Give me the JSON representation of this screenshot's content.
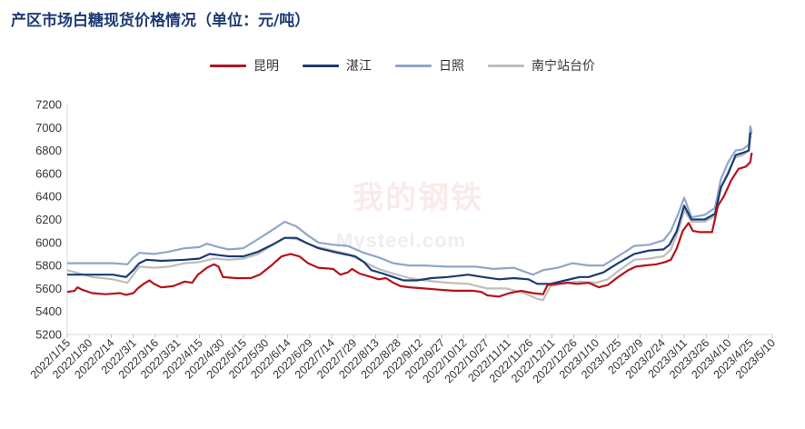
{
  "chart_data": {
    "type": "line",
    "title": "产区市场白糖现货价格情况（单位：元/吨）",
    "ylim": [
      5200,
      7200
    ],
    "yticks": [
      5200,
      5400,
      5600,
      5800,
      6000,
      6200,
      6400,
      6600,
      6800,
      7000,
      7200
    ],
    "xlim": [
      "2022-01-15",
      "2023-05-10"
    ],
    "xtick_labels": [
      "2022/1/15",
      "2022/1/30",
      "2022/2/14",
      "2022/3/1",
      "2022/3/16",
      "2022/3/31",
      "2022/4/15",
      "2022/4/30",
      "2022/5/15",
      "2022/5/30",
      "2022/6/14",
      "2022/6/29",
      "2022/7/14",
      "2022/7/29",
      "2022/8/13",
      "2022/8/28",
      "2022/9/12",
      "2022/9/27",
      "2022/10/12",
      "2022/10/27",
      "2022/11/11",
      "2022/11/26",
      "2022/12/11",
      "2022/12/26",
      "2023/1/10",
      "2023/1/25",
      "2023/2/9",
      "2023/2/24",
      "2023/3/11",
      "2023/3/26",
      "2023/4/10",
      "2023/4/25",
      "2023/5/10"
    ],
    "legend_position": "top",
    "grid": false,
    "series": [
      {
        "name": "昆明",
        "color": "#b5121b",
        "points": [
          [
            "2022-01-15",
            5570
          ],
          [
            "2022-01-20",
            5580
          ],
          [
            "2022-01-22",
            5610
          ],
          [
            "2022-01-25",
            5590
          ],
          [
            "2022-02-01",
            5560
          ],
          [
            "2022-02-10",
            5550
          ],
          [
            "2022-02-20",
            5560
          ],
          [
            "2022-02-24",
            5545
          ],
          [
            "2022-03-01",
            5560
          ],
          [
            "2022-03-04",
            5600
          ],
          [
            "2022-03-08",
            5640
          ],
          [
            "2022-03-12",
            5670
          ],
          [
            "2022-03-15",
            5640
          ],
          [
            "2022-03-20",
            5610
          ],
          [
            "2022-03-28",
            5620
          ],
          [
            "2022-04-05",
            5660
          ],
          [
            "2022-04-10",
            5650
          ],
          [
            "2022-04-14",
            5720
          ],
          [
            "2022-04-20",
            5780
          ],
          [
            "2022-04-25",
            5810
          ],
          [
            "2022-04-28",
            5790
          ],
          [
            "2022-05-01",
            5700
          ],
          [
            "2022-05-10",
            5690
          ],
          [
            "2022-05-20",
            5690
          ],
          [
            "2022-05-26",
            5720
          ],
          [
            "2022-06-03",
            5800
          ],
          [
            "2022-06-10",
            5880
          ],
          [
            "2022-06-16",
            5900
          ],
          [
            "2022-06-22",
            5880
          ],
          [
            "2022-06-28",
            5820
          ],
          [
            "2022-07-05",
            5780
          ],
          [
            "2022-07-15",
            5770
          ],
          [
            "2022-07-20",
            5720
          ],
          [
            "2022-07-25",
            5740
          ],
          [
            "2022-07-28",
            5770
          ],
          [
            "2022-08-02",
            5730
          ],
          [
            "2022-08-10",
            5700
          ],
          [
            "2022-08-15",
            5680
          ],
          [
            "2022-08-20",
            5690
          ],
          [
            "2022-08-25",
            5650
          ],
          [
            "2022-08-30",
            5620
          ],
          [
            "2022-09-05",
            5610
          ],
          [
            "2022-09-15",
            5600
          ],
          [
            "2022-09-25",
            5590
          ],
          [
            "2022-10-05",
            5580
          ],
          [
            "2022-10-18",
            5580
          ],
          [
            "2022-10-24",
            5570
          ],
          [
            "2022-10-28",
            5540
          ],
          [
            "2022-11-05",
            5530
          ],
          [
            "2022-11-12",
            5560
          ],
          [
            "2022-11-20",
            5580
          ],
          [
            "2022-11-28",
            5560
          ],
          [
            "2022-12-05",
            5550
          ],
          [
            "2022-12-08",
            5630
          ],
          [
            "2022-12-15",
            5640
          ],
          [
            "2022-12-22",
            5650
          ],
          [
            "2022-12-28",
            5640
          ],
          [
            "2023-01-05",
            5650
          ],
          [
            "2023-01-12",
            5610
          ],
          [
            "2023-01-18",
            5630
          ],
          [
            "2023-01-25",
            5700
          ],
          [
            "2023-02-01",
            5760
          ],
          [
            "2023-02-06",
            5790
          ],
          [
            "2023-02-12",
            5800
          ],
          [
            "2023-02-20",
            5810
          ],
          [
            "2023-02-26",
            5830
          ],
          [
            "2023-03-02",
            5850
          ],
          [
            "2023-03-06",
            5950
          ],
          [
            "2023-03-10",
            6100
          ],
          [
            "2023-03-14",
            6170
          ],
          [
            "2023-03-17",
            6100
          ],
          [
            "2023-03-22",
            6090
          ],
          [
            "2023-03-30",
            6090
          ],
          [
            "2023-04-03",
            6320
          ],
          [
            "2023-04-07",
            6400
          ],
          [
            "2023-04-12",
            6540
          ],
          [
            "2023-04-17",
            6640
          ],
          [
            "2023-04-22",
            6660
          ],
          [
            "2023-04-25",
            6700
          ],
          [
            "2023-04-26",
            6780
          ]
        ]
      },
      {
        "name": "湛江",
        "color": "#1a3b73",
        "points": [
          [
            "2022-01-15",
            5720
          ],
          [
            "2022-02-01",
            5720
          ],
          [
            "2022-02-15",
            5720
          ],
          [
            "2022-02-24",
            5700
          ],
          [
            "2022-03-01",
            5760
          ],
          [
            "2022-03-05",
            5820
          ],
          [
            "2022-03-10",
            5850
          ],
          [
            "2022-03-20",
            5840
          ],
          [
            "2022-04-05",
            5850
          ],
          [
            "2022-04-15",
            5860
          ],
          [
            "2022-04-22",
            5900
          ],
          [
            "2022-04-28",
            5890
          ],
          [
            "2022-05-05",
            5880
          ],
          [
            "2022-05-15",
            5880
          ],
          [
            "2022-05-25",
            5920
          ],
          [
            "2022-06-05",
            5990
          ],
          [
            "2022-06-12",
            6040
          ],
          [
            "2022-06-20",
            6040
          ],
          [
            "2022-06-28",
            5990
          ],
          [
            "2022-07-05",
            5950
          ],
          [
            "2022-07-15",
            5920
          ],
          [
            "2022-07-22",
            5900
          ],
          [
            "2022-07-30",
            5880
          ],
          [
            "2022-08-05",
            5830
          ],
          [
            "2022-08-10",
            5760
          ],
          [
            "2022-08-18",
            5730
          ],
          [
            "2022-08-25",
            5700
          ],
          [
            "2022-09-01",
            5670
          ],
          [
            "2022-09-10",
            5670
          ],
          [
            "2022-09-20",
            5690
          ],
          [
            "2022-10-01",
            5700
          ],
          [
            "2022-10-15",
            5720
          ],
          [
            "2022-10-25",
            5700
          ],
          [
            "2022-11-05",
            5680
          ],
          [
            "2022-11-15",
            5690
          ],
          [
            "2022-11-25",
            5680
          ],
          [
            "2022-12-01",
            5640
          ],
          [
            "2022-12-10",
            5640
          ],
          [
            "2022-12-20",
            5670
          ],
          [
            "2022-12-30",
            5700
          ],
          [
            "2023-01-05",
            5700
          ],
          [
            "2023-01-15",
            5740
          ],
          [
            "2023-01-25",
            5820
          ],
          [
            "2023-02-05",
            5900
          ],
          [
            "2023-02-15",
            5930
          ],
          [
            "2023-02-25",
            5940
          ],
          [
            "2023-03-01",
            5980
          ],
          [
            "2023-03-06",
            6100
          ],
          [
            "2023-03-11",
            6320
          ],
          [
            "2023-03-16",
            6200
          ],
          [
            "2023-03-25",
            6200
          ],
          [
            "2023-04-01",
            6250
          ],
          [
            "2023-04-05",
            6480
          ],
          [
            "2023-04-10",
            6600
          ],
          [
            "2023-04-15",
            6760
          ],
          [
            "2023-04-20",
            6780
          ],
          [
            "2023-04-24",
            6800
          ],
          [
            "2023-04-25",
            6950
          ],
          [
            "2023-04-26",
            6950
          ]
        ]
      },
      {
        "name": "日照",
        "color": "#8fa6c9",
        "points": [
          [
            "2022-01-15",
            5820
          ],
          [
            "2022-02-01",
            5820
          ],
          [
            "2022-02-15",
            5820
          ],
          [
            "2022-02-25",
            5810
          ],
          [
            "2022-03-01",
            5870
          ],
          [
            "2022-03-05",
            5910
          ],
          [
            "2022-03-15",
            5900
          ],
          [
            "2022-03-25",
            5920
          ],
          [
            "2022-04-05",
            5950
          ],
          [
            "2022-04-15",
            5960
          ],
          [
            "2022-04-20",
            5990
          ],
          [
            "2022-04-28",
            5960
          ],
          [
            "2022-05-05",
            5940
          ],
          [
            "2022-05-15",
            5950
          ],
          [
            "2022-05-25",
            6030
          ],
          [
            "2022-06-05",
            6120
          ],
          [
            "2022-06-12",
            6180
          ],
          [
            "2022-06-20",
            6140
          ],
          [
            "2022-06-28",
            6060
          ],
          [
            "2022-07-05",
            6000
          ],
          [
            "2022-07-15",
            5980
          ],
          [
            "2022-07-25",
            5970
          ],
          [
            "2022-08-05",
            5910
          ],
          [
            "2022-08-15",
            5870
          ],
          [
            "2022-08-25",
            5820
          ],
          [
            "2022-09-05",
            5800
          ],
          [
            "2022-09-15",
            5800
          ],
          [
            "2022-10-01",
            5790
          ],
          [
            "2022-10-20",
            5790
          ],
          [
            "2022-11-01",
            5770
          ],
          [
            "2022-11-15",
            5780
          ],
          [
            "2022-11-28",
            5720
          ],
          [
            "2022-12-05",
            5760
          ],
          [
            "2022-12-15",
            5780
          ],
          [
            "2022-12-25",
            5820
          ],
          [
            "2023-01-05",
            5800
          ],
          [
            "2023-01-15",
            5800
          ],
          [
            "2023-01-25",
            5880
          ],
          [
            "2023-02-05",
            5970
          ],
          [
            "2023-02-15",
            5980
          ],
          [
            "2023-02-25",
            6020
          ],
          [
            "2023-03-02",
            6100
          ],
          [
            "2023-03-07",
            6250
          ],
          [
            "2023-03-11",
            6390
          ],
          [
            "2023-03-16",
            6220
          ],
          [
            "2023-03-25",
            6240
          ],
          [
            "2023-04-01",
            6300
          ],
          [
            "2023-04-05",
            6550
          ],
          [
            "2023-04-10",
            6700
          ],
          [
            "2023-04-15",
            6800
          ],
          [
            "2023-04-20",
            6810
          ],
          [
            "2023-04-24",
            6850
          ],
          [
            "2023-04-25",
            7010
          ],
          [
            "2023-04-26",
            6960
          ]
        ]
      },
      {
        "name": "南宁站台价",
        "color": "#bdbdbd",
        "points": [
          [
            "2022-01-15",
            5760
          ],
          [
            "2022-02-01",
            5700
          ],
          [
            "2022-02-15",
            5680
          ],
          [
            "2022-02-25",
            5650
          ],
          [
            "2022-03-01",
            5720
          ],
          [
            "2022-03-05",
            5790
          ],
          [
            "2022-03-15",
            5780
          ],
          [
            "2022-03-25",
            5790
          ],
          [
            "2022-04-05",
            5820
          ],
          [
            "2022-04-15",
            5830
          ],
          [
            "2022-04-25",
            5860
          ],
          [
            "2022-05-05",
            5850
          ],
          [
            "2022-05-15",
            5860
          ],
          [
            "2022-05-25",
            5900
          ],
          [
            "2022-06-05",
            5990
          ],
          [
            "2022-06-12",
            6040
          ],
          [
            "2022-06-20",
            6030
          ],
          [
            "2022-06-28",
            5990
          ],
          [
            "2022-07-05",
            5960
          ],
          [
            "2022-07-15",
            5930
          ],
          [
            "2022-07-25",
            5900
          ],
          [
            "2022-08-05",
            5830
          ],
          [
            "2022-08-15",
            5770
          ],
          [
            "2022-08-25",
            5730
          ],
          [
            "2022-09-05",
            5690
          ],
          [
            "2022-09-15",
            5670
          ],
          [
            "2022-10-01",
            5650
          ],
          [
            "2022-10-15",
            5640
          ],
          [
            "2022-10-28",
            5600
          ],
          [
            "2022-11-10",
            5600
          ],
          [
            "2022-11-22",
            5560
          ],
          [
            "2022-12-01",
            5510
          ],
          [
            "2022-12-05",
            5500
          ],
          [
            "2022-12-10",
            5620
          ],
          [
            "2022-12-20",
            5650
          ],
          [
            "2022-12-30",
            5660
          ],
          [
            "2023-01-10",
            5650
          ],
          [
            "2023-01-18",
            5680
          ],
          [
            "2023-01-25",
            5750
          ],
          [
            "2023-02-05",
            5850
          ],
          [
            "2023-02-15",
            5860
          ],
          [
            "2023-02-25",
            5880
          ],
          [
            "2023-03-02",
            5940
          ],
          [
            "2023-03-07",
            6100
          ],
          [
            "2023-03-11",
            6280
          ],
          [
            "2023-03-16",
            6180
          ],
          [
            "2023-03-25",
            6180
          ],
          [
            "2023-04-01",
            6230
          ],
          [
            "2023-04-05",
            6470
          ],
          [
            "2023-04-10",
            6620
          ],
          [
            "2023-04-15",
            6740
          ],
          [
            "2023-04-20",
            6760
          ],
          [
            "2023-04-24",
            6800
          ],
          [
            "2023-04-25",
            6920
          ],
          [
            "2023-04-26",
            6920
          ]
        ]
      }
    ]
  },
  "watermark": {
    "line1": "我的钢铁",
    "line2": "Mysteel.com"
  }
}
